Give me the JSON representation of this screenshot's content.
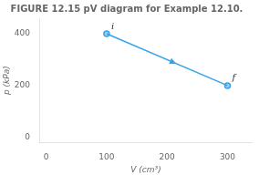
{
  "chart_data": {
    "type": "line",
    "title": "FIGURE 12.15 pV diagram for Example 12.10.",
    "x": [
      100,
      300
    ],
    "values": [
      400,
      200
    ],
    "marker": "circle",
    "xlabel": "V (cm³)",
    "ylabel": "p (kPa)",
    "xlim": [
      -10,
      340
    ],
    "ylim": [
      -20,
      460
    ],
    "xticks": [
      0,
      100,
      200,
      300
    ],
    "yticks": [
      0,
      200,
      400
    ],
    "grid": false,
    "annotations": [
      {
        "text": "i",
        "x": 100,
        "y": 400
      },
      {
        "text": "f",
        "x": 300,
        "y": 200
      }
    ]
  }
}
